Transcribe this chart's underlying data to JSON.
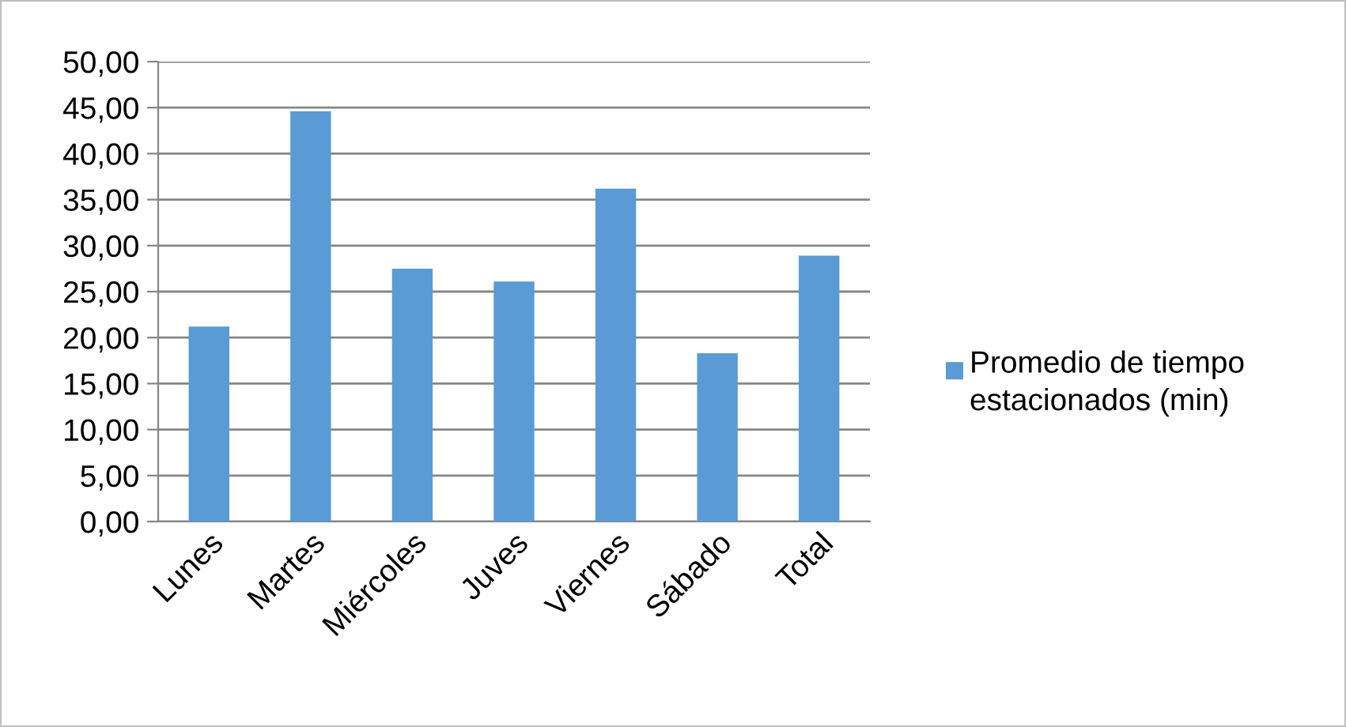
{
  "chart_data": {
    "type": "bar",
    "categories": [
      "Lunes",
      "Martes",
      "Miércoles",
      "Juves",
      "Viernes",
      "Sábado",
      "Total"
    ],
    "series": [
      {
        "name": "Promedio de tiempo estacionados (min)",
        "color": "#5b9bd5",
        "values": [
          21.2,
          44.6,
          27.5,
          26.1,
          36.2,
          18.3,
          28.9
        ]
      }
    ],
    "ylim": [
      0,
      50
    ],
    "yticks": [
      {
        "value": 0,
        "label": "0,00"
      },
      {
        "value": 5,
        "label": "5,00"
      },
      {
        "value": 10,
        "label": "10,00"
      },
      {
        "value": 15,
        "label": "15,00"
      },
      {
        "value": 20,
        "label": "20,00"
      },
      {
        "value": 25,
        "label": "25,00"
      },
      {
        "value": 30,
        "label": "30,00"
      },
      {
        "value": 35,
        "label": "35,00"
      },
      {
        "value": 40,
        "label": "40,00"
      },
      {
        "value": 45,
        "label": "45,00"
      },
      {
        "value": 50,
        "label": "50,00"
      }
    ],
    "grid": "y",
    "legend": "right"
  }
}
